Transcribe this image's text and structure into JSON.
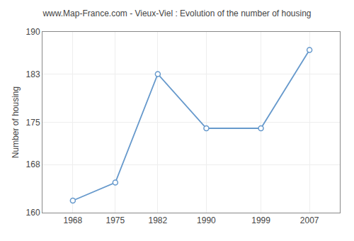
{
  "chart_data": {
    "type": "line",
    "title": "www.Map-France.com - Vieux-Viel : Evolution of the number of housing",
    "x": [
      1968,
      1975,
      1982,
      1990,
      1999,
      2007
    ],
    "values": [
      162,
      165,
      183,
      174,
      174,
      187
    ],
    "ylabel": "Number of housing",
    "xlim": [
      1963,
      2012
    ],
    "ylim": [
      160,
      190
    ],
    "xticks": [
      1968,
      1975,
      1982,
      1990,
      1999,
      2007
    ],
    "yticks": [
      160,
      168,
      175,
      183,
      190
    ],
    "color": "#6699cc",
    "marker": "circle",
    "grid": true
  }
}
